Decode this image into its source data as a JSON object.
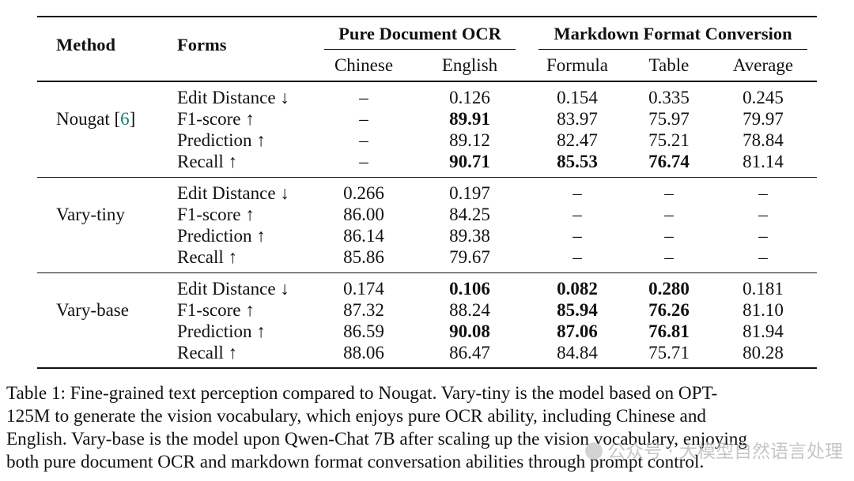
{
  "header": {
    "method": "Method",
    "forms": "Forms",
    "group_ocr": "Pure Document OCR",
    "group_md": "Markdown Format Conversion",
    "cols": [
      "Chinese",
      "English",
      "Formula",
      "Table",
      "Average"
    ]
  },
  "groups": [
    {
      "method": "Nougat [",
      "cite": "6",
      "method_close": "]",
      "rows": [
        {
          "form": "Edit Distance ↓",
          "vals": [
            "–",
            "0.126",
            "0.154",
            "0.335",
            "0.245"
          ],
          "bold": [
            false,
            false,
            false,
            false,
            false
          ]
        },
        {
          "form": "F1-score ↑",
          "vals": [
            "–",
            "89.91",
            "83.97",
            "75.97",
            "79.97"
          ],
          "bold": [
            false,
            true,
            false,
            false,
            false
          ]
        },
        {
          "form": "Prediction ↑",
          "vals": [
            "–",
            "89.12",
            "82.47",
            "75.21",
            "78.84"
          ],
          "bold": [
            false,
            false,
            false,
            false,
            false
          ]
        },
        {
          "form": "Recall ↑",
          "vals": [
            "–",
            "90.71",
            "85.53",
            "76.74",
            "81.14"
          ],
          "bold": [
            false,
            true,
            true,
            true,
            false
          ]
        }
      ]
    },
    {
      "method": "Vary-tiny",
      "rows": [
        {
          "form": "Edit Distance ↓",
          "vals": [
            "0.266",
            "0.197",
            "–",
            "–",
            "–"
          ],
          "bold": [
            false,
            false,
            false,
            false,
            false
          ]
        },
        {
          "form": "F1-score ↑",
          "vals": [
            "86.00",
            "84.25",
            "–",
            "–",
            "–"
          ],
          "bold": [
            false,
            false,
            false,
            false,
            false
          ]
        },
        {
          "form": "Prediction ↑",
          "vals": [
            "86.14",
            "89.38",
            "–",
            "–",
            "–"
          ],
          "bold": [
            false,
            false,
            false,
            false,
            false
          ]
        },
        {
          "form": "Recall ↑",
          "vals": [
            "85.86",
            "79.67",
            "–",
            "–",
            "–"
          ],
          "bold": [
            false,
            false,
            false,
            false,
            false
          ]
        }
      ]
    },
    {
      "method": "Vary-base",
      "rows": [
        {
          "form": "Edit Distance ↓",
          "vals": [
            "0.174",
            "0.106",
            "0.082",
            "0.280",
            "0.181"
          ],
          "bold": [
            false,
            true,
            true,
            true,
            false
          ]
        },
        {
          "form": "F1-score ↑",
          "vals": [
            "87.32",
            "88.24",
            "85.94",
            "76.26",
            "81.10"
          ],
          "bold": [
            false,
            false,
            true,
            true,
            false
          ]
        },
        {
          "form": "Prediction ↑",
          "vals": [
            "86.59",
            "90.08",
            "87.06",
            "76.81",
            "81.94"
          ],
          "bold": [
            false,
            true,
            true,
            true,
            false
          ]
        },
        {
          "form": "Recall ↑",
          "vals": [
            "88.06",
            "86.47",
            "84.84",
            "75.71",
            "80.28"
          ],
          "bold": [
            false,
            false,
            false,
            false,
            false
          ]
        }
      ]
    }
  ],
  "caption_lines": [
    "Table 1: Fine-grained text perception compared to Nougat. Vary-tiny is the model based on OPT-",
    "125M to generate the vision vocabulary, which enjoys pure OCR ability, including Chinese and",
    "English. Vary-base is the model upon Qwen-Chat 7B after scaling up the vision vocabulary, enjoying",
    "both pure document OCR and markdown format conversation abilities through prompt control."
  ],
  "watermark": "公众号 · 大模型自然语言处理"
}
